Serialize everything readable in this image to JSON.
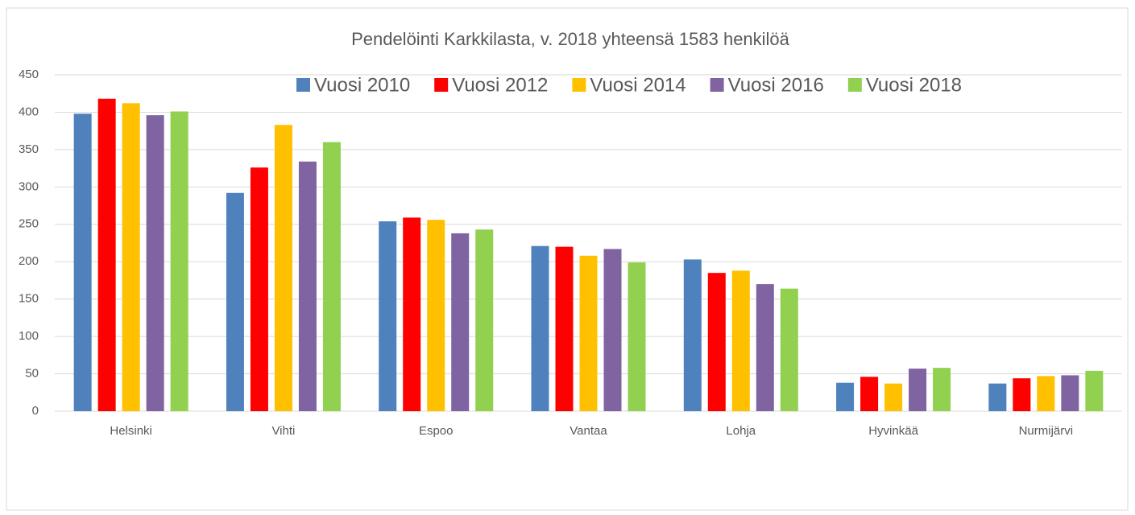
{
  "chart_data": {
    "type": "bar",
    "title": "Pendelöinti Karkkilasta, v. 2018 yhteensä 1583 henkilöä",
    "categories": [
      "Helsinki",
      "Vihti",
      "Espoo",
      "Vantaa",
      "Lohja",
      "Hyvinkää",
      "Nurmijärvi"
    ],
    "series": [
      {
        "name": "Vuosi 2010",
        "color": "#4f81bd",
        "values": [
          398,
          292,
          254,
          221,
          203,
          38,
          37
        ]
      },
      {
        "name": "Vuosi 2012",
        "color": "#ff0000",
        "values": [
          418,
          326,
          259,
          220,
          185,
          46,
          44
        ]
      },
      {
        "name": "Vuosi 2014",
        "color": "#ffc000",
        "values": [
          412,
          383,
          256,
          208,
          188,
          37,
          47
        ]
      },
      {
        "name": "Vuosi 2016",
        "color": "#8064a2",
        "values": [
          396,
          334,
          238,
          217,
          170,
          57,
          48
        ]
      },
      {
        "name": "Vuosi 2018",
        "color": "#92d050",
        "values": [
          401,
          360,
          243,
          199,
          164,
          58,
          54
        ]
      }
    ],
    "ylim": [
      0,
      450
    ],
    "yticks": [
      0,
      50,
      100,
      150,
      200,
      250,
      300,
      350,
      400,
      450
    ],
    "grid": true,
    "legend": "top"
  }
}
